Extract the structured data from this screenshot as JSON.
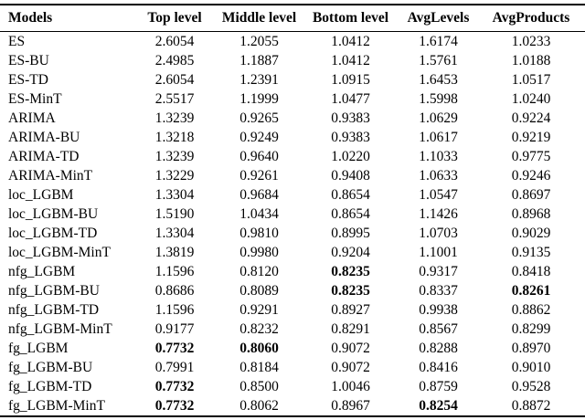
{
  "colors": {
    "background": "#ffffff",
    "text": "#000000",
    "rule": "#000000"
  },
  "table": {
    "columns": [
      "Models",
      "Top level",
      "Middle level",
      "Bottom level",
      "AvgLevels",
      "AvgProducts"
    ],
    "rows": [
      {
        "model": "ES",
        "values": [
          "2.6054",
          "1.2055",
          "1.0412",
          "1.6174",
          "1.0233"
        ],
        "bold": []
      },
      {
        "model": "ES-BU",
        "values": [
          "2.4985",
          "1.1887",
          "1.0412",
          "1.5761",
          "1.0188"
        ],
        "bold": []
      },
      {
        "model": "ES-TD",
        "values": [
          "2.6054",
          "1.2391",
          "1.0915",
          "1.6453",
          "1.0517"
        ],
        "bold": []
      },
      {
        "model": "ES-MinT",
        "values": [
          "2.5517",
          "1.1999",
          "1.0477",
          "1.5998",
          "1.0240"
        ],
        "bold": []
      },
      {
        "model": "ARIMA",
        "values": [
          "1.3239",
          "0.9265",
          "0.9383",
          "1.0629",
          "0.9224"
        ],
        "bold": []
      },
      {
        "model": "ARIMA-BU",
        "values": [
          "1.3218",
          "0.9249",
          "0.9383",
          "1.0617",
          "0.9219"
        ],
        "bold": []
      },
      {
        "model": "ARIMA-TD",
        "values": [
          "1.3239",
          "0.9640",
          "1.0220",
          "1.1033",
          "0.9775"
        ],
        "bold": []
      },
      {
        "model": "ARIMA-MinT",
        "values": [
          "1.3229",
          "0.9261",
          "0.9408",
          "1.0633",
          "0.9246"
        ],
        "bold": []
      },
      {
        "model": "loc_LGBM",
        "values": [
          "1.3304",
          "0.9684",
          "0.8654",
          "1.0547",
          "0.8697"
        ],
        "bold": []
      },
      {
        "model": "loc_LGBM-BU",
        "values": [
          "1.5190",
          "1.0434",
          "0.8654",
          "1.1426",
          "0.8968"
        ],
        "bold": []
      },
      {
        "model": "loc_LGBM-TD",
        "values": [
          "1.3304",
          "0.9810",
          "0.8995",
          "1.0703",
          "0.9029"
        ],
        "bold": []
      },
      {
        "model": "loc_LGBM-MinT",
        "values": [
          "1.3819",
          "0.9980",
          "0.9204",
          "1.1001",
          "0.9135"
        ],
        "bold": []
      },
      {
        "model": "nfg_LGBM",
        "values": [
          "1.1596",
          "0.8120",
          "0.8235",
          "0.9317",
          "0.8418"
        ],
        "bold": [
          2
        ]
      },
      {
        "model": "nfg_LGBM-BU",
        "values": [
          "0.8686",
          "0.8089",
          "0.8235",
          "0.8337",
          "0.8261"
        ],
        "bold": [
          2,
          4
        ]
      },
      {
        "model": "nfg_LGBM-TD",
        "values": [
          "1.1596",
          "0.9291",
          "0.8927",
          "0.9938",
          "0.8862"
        ],
        "bold": []
      },
      {
        "model": "nfg_LGBM-MinT",
        "values": [
          "0.9177",
          "0.8232",
          "0.8291",
          "0.8567",
          "0.8299"
        ],
        "bold": []
      },
      {
        "model": "fg_LGBM",
        "values": [
          "0.7732",
          "0.8060",
          "0.9072",
          "0.8288",
          "0.8970"
        ],
        "bold": [
          0,
          1
        ]
      },
      {
        "model": "fg_LGBM-BU",
        "values": [
          "0.7991",
          "0.8184",
          "0.9072",
          "0.8416",
          "0.9010"
        ],
        "bold": []
      },
      {
        "model": "fg_LGBM-TD",
        "values": [
          "0.7732",
          "0.8500",
          "1.0046",
          "0.8759",
          "0.9528"
        ],
        "bold": [
          0
        ]
      },
      {
        "model": "fg_LGBM-MinT",
        "values": [
          "0.7732",
          "0.8062",
          "0.8967",
          "0.8254",
          "0.8872"
        ],
        "bold": [
          0,
          3
        ]
      }
    ]
  }
}
